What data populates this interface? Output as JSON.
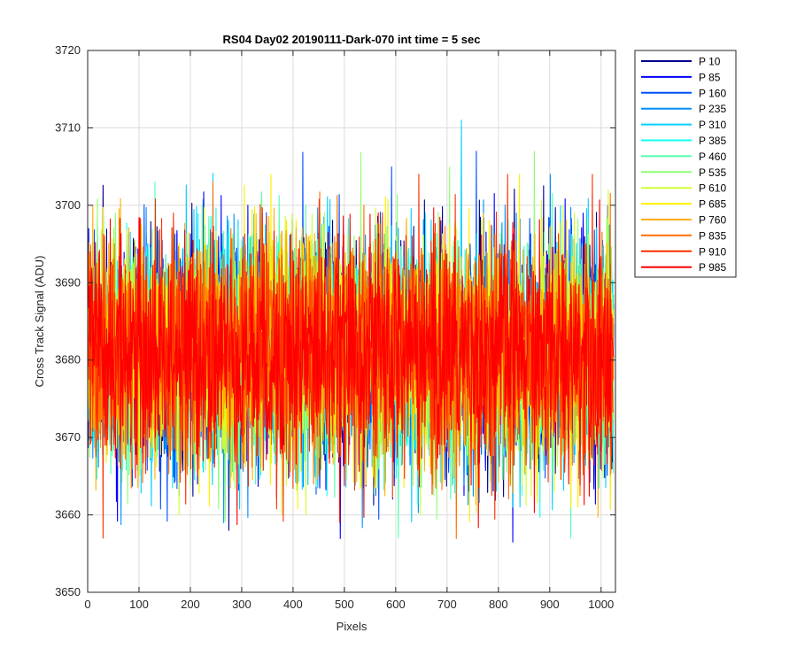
{
  "chart_data": {
    "type": "line",
    "title": "RS04 Day02 20190111-Dark-070 int time = 5 sec",
    "xlabel": "Pixels",
    "ylabel": "Cross Track Signal (ADU)",
    "xlim": [
      0,
      1028
    ],
    "ylim": [
      3650,
      3720
    ],
    "xticks": [
      0,
      100,
      200,
      300,
      400,
      500,
      600,
      700,
      800,
      900,
      1000
    ],
    "yticks": [
      3650,
      3660,
      3670,
      3680,
      3690,
      3700,
      3710,
      3720
    ],
    "grid": true,
    "legend_position": "outside-top-right",
    "x_range": [
      1,
      1024
    ],
    "noise": {
      "mean": 3681,
      "typical_band": [
        3667,
        3696
      ]
    },
    "series": [
      {
        "name": "P 10",
        "color": "#00008f",
        "observed_min": 3658,
        "observed_max": 3704
      },
      {
        "name": "P 85",
        "color": "#0000ff",
        "observed_min": 3651,
        "observed_max": 3706
      },
      {
        "name": "P 160",
        "color": "#0050ff",
        "observed_min": 3656,
        "observed_max": 3711
      },
      {
        "name": "P 235",
        "color": "#008fff",
        "observed_min": 3657,
        "observed_max": 3704
      },
      {
        "name": "P 310",
        "color": "#00cfff",
        "observed_min": 3653,
        "observed_max": 3711
      },
      {
        "name": "P 385",
        "color": "#10ffef",
        "observed_min": 3658,
        "observed_max": 3706
      },
      {
        "name": "P 460",
        "color": "#50ffaf",
        "observed_min": 3657,
        "observed_max": 3703
      },
      {
        "name": "P 535",
        "color": "#8fff70",
        "observed_min": 3656,
        "observed_max": 3709
      },
      {
        "name": "P 610",
        "color": "#cfff30",
        "observed_min": 3660,
        "observed_max": 3702
      },
      {
        "name": "P 685",
        "color": "#ffef00",
        "observed_min": 3659,
        "observed_max": 3704
      },
      {
        "name": "P 760",
        "color": "#ffaf00",
        "observed_min": 3656,
        "observed_max": 3707
      },
      {
        "name": "P 835",
        "color": "#ff7000",
        "observed_min": 3653,
        "observed_max": 3706
      },
      {
        "name": "P 910",
        "color": "#ff3000",
        "observed_min": 3657,
        "observed_max": 3704
      },
      {
        "name": "P 985",
        "color": "#ff0000",
        "observed_min": 3657,
        "observed_max": 3702
      }
    ]
  }
}
